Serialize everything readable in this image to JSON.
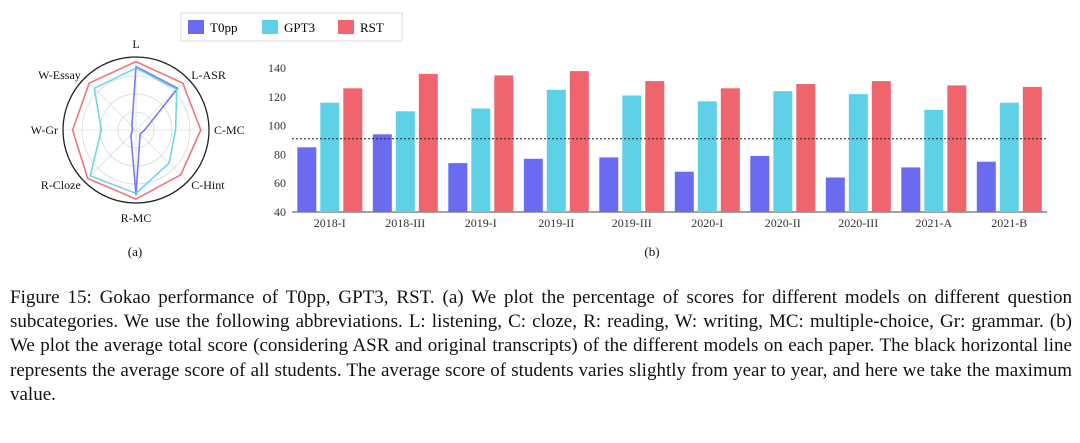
{
  "legend": [
    {
      "name": "T0pp",
      "color": "#6b6bf2"
    },
    {
      "name": "GPT3",
      "color": "#5fd1e6"
    },
    {
      "name": "RST",
      "color": "#f0646e"
    }
  ],
  "panel_labels": {
    "a": "(a)",
    "b": "(b)"
  },
  "caption": "Figure 15: Gokao performance of T0pp, GPT3, RST. (a) We plot the percentage of scores for different models on different question subcategories. We use the following abbreviations. L: listening, C: cloze, R: reading, W: writing, MC: multiple-choice, Gr: grammar. (b) We plot the average total score (considering ASR and original transcripts) of the different models on each paper. The black horizontal line represents the average score of all students. The average score of students varies slightly from year to year, and here we take the maximum value.",
  "chart_data": [
    {
      "type": "radar",
      "axes": [
        "L",
        "L-ASR",
        "C-MC",
        "C-Hint",
        "R-MC",
        "R-Cloze",
        "W-Gr",
        "W-Essay"
      ],
      "range": [
        0,
        100
      ],
      "series": [
        {
          "name": "T0pp",
          "color": "#6b6bf2",
          "values": [
            88,
            82,
            12,
            8,
            90,
            10,
            5,
            8
          ]
        },
        {
          "name": "GPT3",
          "color": "#5fd1e6",
          "values": [
            86,
            80,
            55,
            65,
            88,
            90,
            48,
            82
          ]
        },
        {
          "name": "RST",
          "color": "#f0646e",
          "values": [
            95,
            92,
            90,
            88,
            96,
            95,
            88,
            92
          ]
        }
      ]
    },
    {
      "type": "bar",
      "categories": [
        "2018-I",
        "2018-III",
        "2019-I",
        "2019-II",
        "2019-III",
        "2020-I",
        "2020-II",
        "2020-III",
        "2021-A",
        "2021-B"
      ],
      "ylim": [
        40,
        145
      ],
      "yticks": [
        40,
        60,
        80,
        100,
        120,
        140
      ],
      "reference_line": 91,
      "series": [
        {
          "name": "T0pp",
          "color": "#6b6bf2",
          "values": [
            85,
            94,
            74,
            77,
            78,
            68,
            79,
            64,
            71,
            75
          ]
        },
        {
          "name": "GPT3",
          "color": "#5fd1e6",
          "values": [
            116,
            110,
            112,
            125,
            121,
            117,
            124,
            122,
            111,
            116
          ]
        },
        {
          "name": "RST",
          "color": "#f0646e",
          "values": [
            126,
            136,
            135,
            138,
            131,
            126,
            129,
            131,
            128,
            127
          ]
        }
      ]
    }
  ]
}
